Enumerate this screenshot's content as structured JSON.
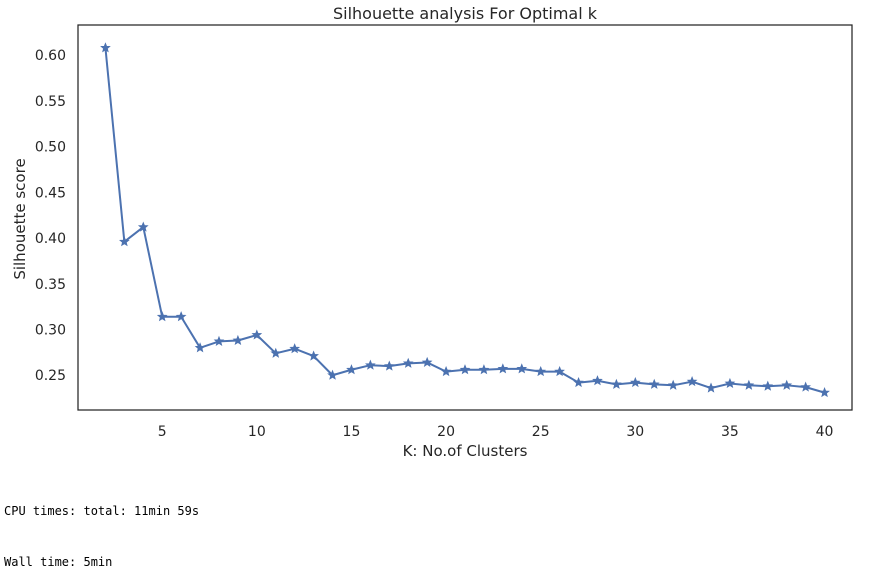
{
  "chart_data": {
    "type": "line",
    "title": "Silhouette analysis For Optimal k",
    "xlabel": "K: No.of Clusters",
    "ylabel": "Silhouette score",
    "xlim": [
      0.55,
      41.45
    ],
    "ylim": [
      0.212,
      0.633
    ],
    "xticks": [
      5,
      10,
      15,
      20,
      25,
      30,
      35,
      40
    ],
    "xtick_labels": [
      "5",
      "10",
      "15",
      "20",
      "25",
      "30",
      "35",
      "40"
    ],
    "yticks": [
      0.25,
      0.3,
      0.35,
      0.4,
      0.45,
      0.5,
      0.55,
      0.6
    ],
    "ytick_labels": [
      "0.25",
      "0.30",
      "0.35",
      "0.40",
      "0.45",
      "0.50",
      "0.55",
      "0.60"
    ],
    "grid": false,
    "marker": "star",
    "line_color": "#4c72b0",
    "series": [
      {
        "x": [
          2,
          3,
          4,
          5,
          6,
          7,
          8,
          9,
          10,
          11,
          12,
          13,
          14,
          15,
          16,
          17,
          18,
          19,
          20,
          21,
          22,
          23,
          24,
          25,
          26,
          27,
          28,
          29,
          30,
          31,
          32,
          33,
          34,
          35,
          36,
          37,
          38,
          39,
          40
        ],
        "values": [
          0.608,
          0.396,
          0.412,
          0.314,
          0.314,
          0.28,
          0.287,
          0.288,
          0.294,
          0.274,
          0.279,
          0.271,
          0.25,
          0.256,
          0.261,
          0.26,
          0.263,
          0.264,
          0.254,
          0.256,
          0.256,
          0.257,
          0.257,
          0.254,
          0.254,
          0.242,
          0.244,
          0.24,
          0.242,
          0.24,
          0.239,
          0.243,
          0.236,
          0.241,
          0.239,
          0.238,
          0.239,
          0.237,
          0.231
        ]
      }
    ]
  },
  "console": {
    "cpu_line": "CPU times: total: 11min 59s",
    "wall_line": "Wall time: 5min"
  }
}
